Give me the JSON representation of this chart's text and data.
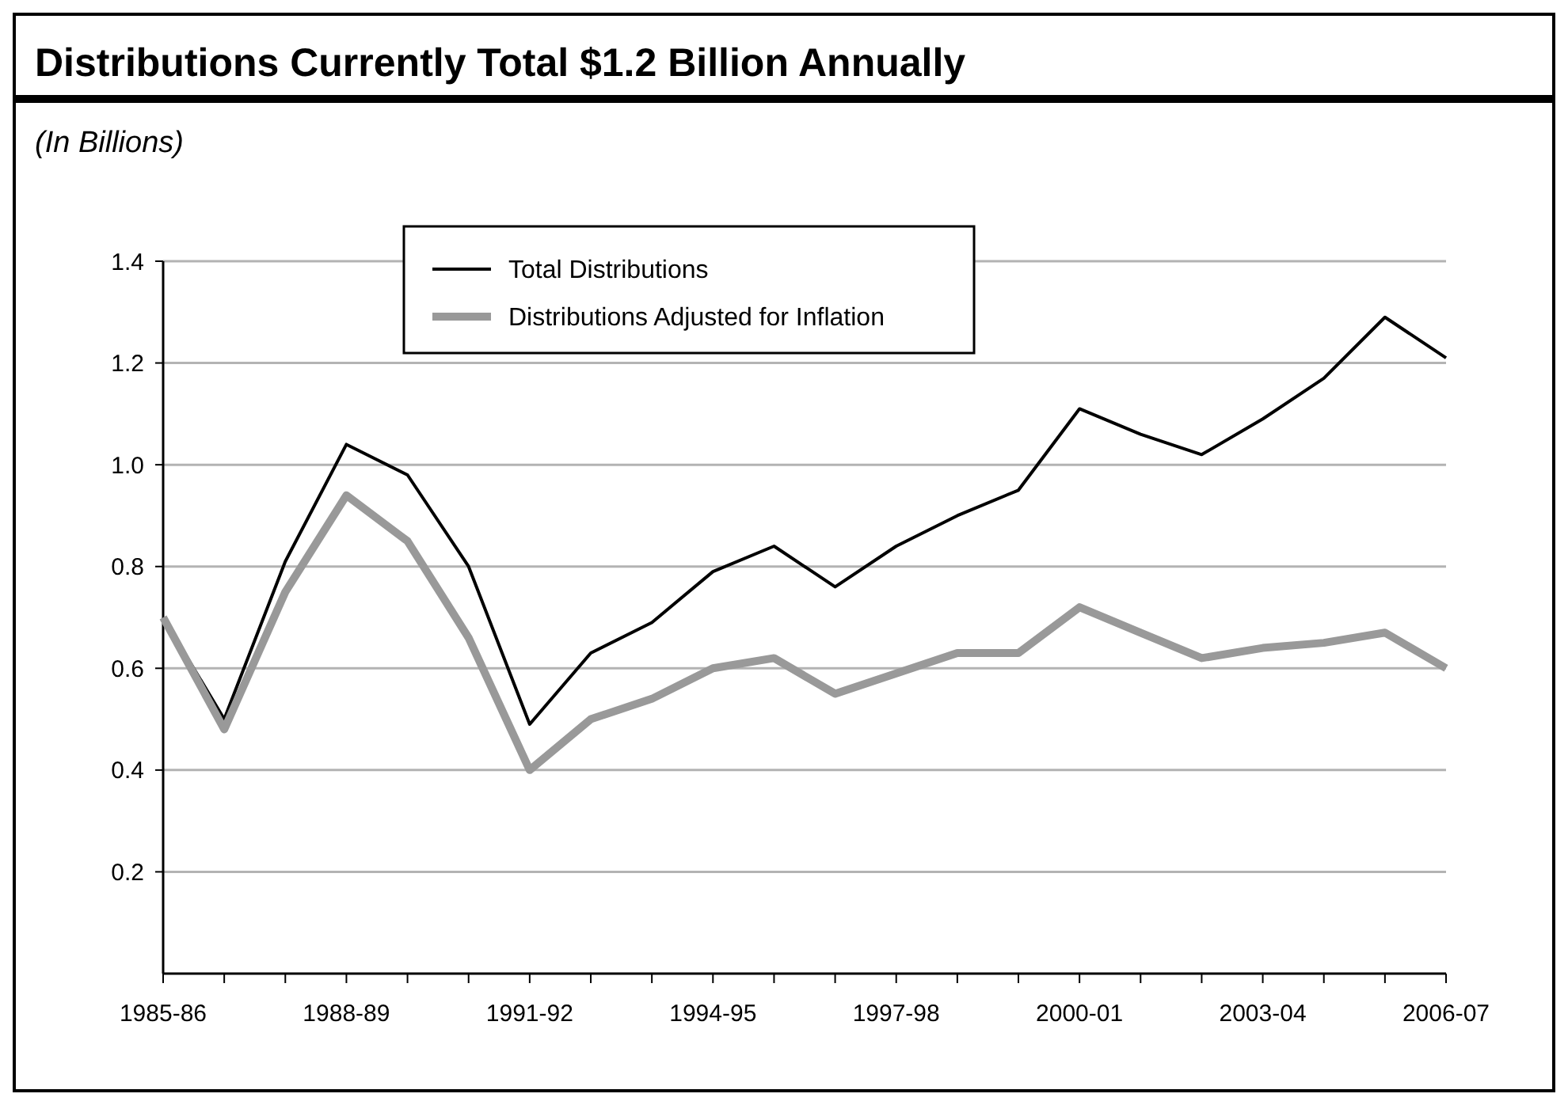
{
  "chart_data": {
    "type": "line",
    "title": "Distributions Currently Total $1.2 Billion Annually",
    "subtitle": "(In Billions)",
    "categories": [
      "1985-86",
      null,
      null,
      "1988-89",
      null,
      null,
      "1991-92",
      null,
      null,
      "1994-95",
      null,
      null,
      "1997-98",
      null,
      null,
      "2000-01",
      null,
      null,
      "2003-04",
      null,
      null,
      "2006-07"
    ],
    "series": [
      {
        "name": "Total Distributions",
        "color": "#000000",
        "values": [
          0.7,
          0.5,
          0.81,
          1.04,
          0.98,
          0.8,
          0.49,
          0.63,
          0.69,
          0.79,
          0.84,
          0.76,
          0.84,
          0.9,
          0.95,
          1.11,
          1.06,
          1.02,
          1.09,
          1.17,
          1.29,
          1.21
        ]
      },
      {
        "name": "Distributions Adjusted for Inflation",
        "color": "#999999",
        "values": [
          0.7,
          0.48,
          0.75,
          0.94,
          0.85,
          0.66,
          0.4,
          0.5,
          0.54,
          0.6,
          0.62,
          0.55,
          0.59,
          0.63,
          0.63,
          0.72,
          0.67,
          0.62,
          0.64,
          0.65,
          0.67,
          0.6
        ]
      }
    ],
    "ylim": [
      0,
      1.4
    ],
    "yticks": [
      {
        "value": 0.2,
        "label": "0.2"
      },
      {
        "value": 0.4,
        "label": "0.4"
      },
      {
        "value": 0.6,
        "label": "0.6"
      },
      {
        "value": 0.8,
        "label": "0.8"
      },
      {
        "value": 1.0,
        "label": "1.0"
      },
      {
        "value": 1.2,
        "label": "1.2"
      },
      {
        "value": 1.4,
        "label": "1.4"
      }
    ],
    "grid": "y",
    "legend": "top",
    "marker": "none",
    "line_style": "solid"
  }
}
